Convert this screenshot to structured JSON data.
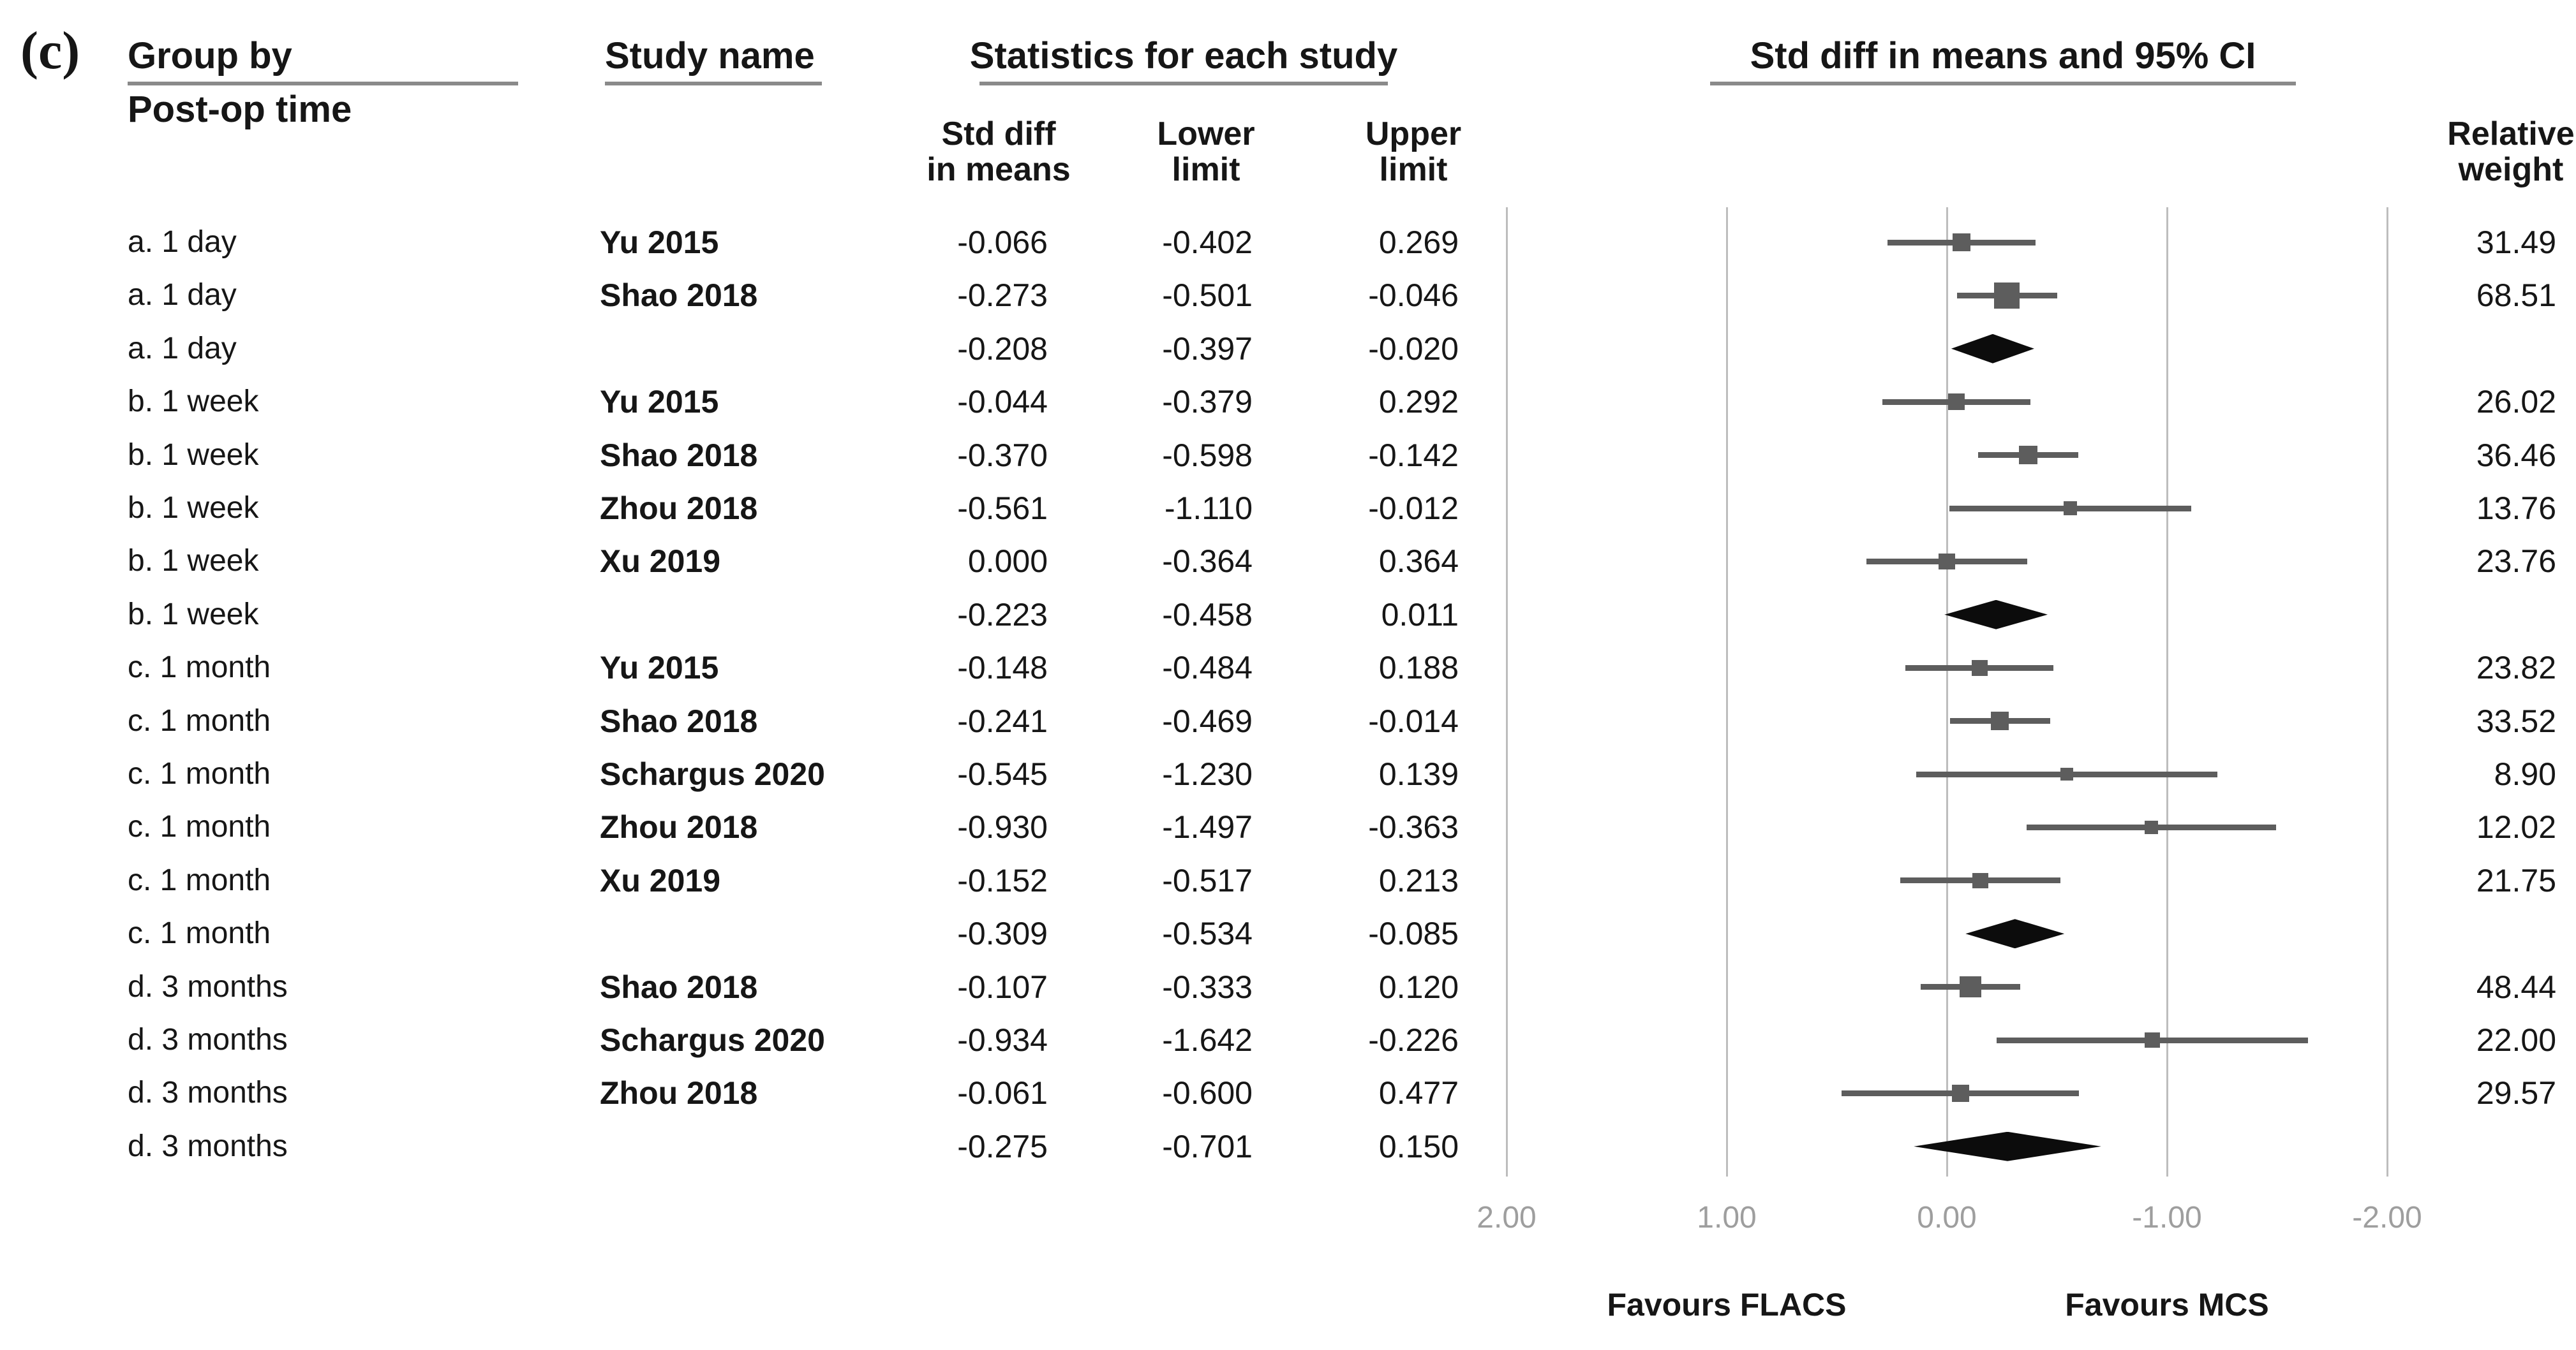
{
  "panel_label": "(c)",
  "headers": {
    "group_by": "Group by",
    "post_op_time": "Post-op time",
    "study_name": "Study name",
    "statistics": "Statistics for each study",
    "std_diff_line1": "Std diff",
    "std_diff_line2": "in means",
    "lower_line1": "Lower",
    "lower_line2": "limit",
    "upper_line1": "Upper",
    "upper_line2": "limit",
    "ci_title": "Std diff in means and 95% CI",
    "weight_line1": "Relative",
    "weight_line2": "weight"
  },
  "chart_data": {
    "type": "scatter",
    "subtype": "forest-plot",
    "title": "Std diff in means and 95% CI",
    "x_axis": {
      "tick_labels": [
        "2.00",
        "1.00",
        "0.00",
        "-1.00",
        "-2.00"
      ],
      "tick_values": [
        2,
        1,
        0,
        -1,
        -2
      ],
      "reversed": true,
      "range": [
        2,
        -2
      ],
      "grid": true
    },
    "favours": {
      "left": "Favours FLACS",
      "right": "Favours MCS"
    },
    "rows": [
      {
        "kind": "study",
        "group": "a. 1 day",
        "study": "Yu 2015",
        "std_diff": "-0.066",
        "lower": "-0.402",
        "upper": "0.269",
        "weight": "31.49"
      },
      {
        "kind": "study",
        "group": "a. 1 day",
        "study": "Shao 2018",
        "std_diff": "-0.273",
        "lower": "-0.501",
        "upper": "-0.046",
        "weight": "68.51"
      },
      {
        "kind": "summary",
        "group": "a. 1 day",
        "study": "",
        "std_diff": "-0.208",
        "lower": "-0.397",
        "upper": "-0.020",
        "weight": ""
      },
      {
        "kind": "study",
        "group": "b. 1 week",
        "study": "Yu 2015",
        "std_diff": "-0.044",
        "lower": "-0.379",
        "upper": "0.292",
        "weight": "26.02"
      },
      {
        "kind": "study",
        "group": "b. 1 week",
        "study": "Shao 2018",
        "std_diff": "-0.370",
        "lower": "-0.598",
        "upper": "-0.142",
        "weight": "36.46"
      },
      {
        "kind": "study",
        "group": "b. 1 week",
        "study": "Zhou 2018",
        "std_diff": "-0.561",
        "lower": "-1.110",
        "upper": "-0.012",
        "weight": "13.76"
      },
      {
        "kind": "study",
        "group": "b. 1 week",
        "study": "Xu 2019",
        "std_diff": "0.000",
        "lower": "-0.364",
        "upper": "0.364",
        "weight": "23.76"
      },
      {
        "kind": "summary",
        "group": "b. 1 week",
        "study": "",
        "std_diff": "-0.223",
        "lower": "-0.458",
        "upper": "0.011",
        "weight": ""
      },
      {
        "kind": "study",
        "group": "c. 1 month",
        "study": "Yu 2015",
        "std_diff": "-0.148",
        "lower": "-0.484",
        "upper": "0.188",
        "weight": "23.82"
      },
      {
        "kind": "study",
        "group": "c. 1 month",
        "study": "Shao 2018",
        "std_diff": "-0.241",
        "lower": "-0.469",
        "upper": "-0.014",
        "weight": "33.52"
      },
      {
        "kind": "study",
        "group": "c. 1 month",
        "study": "Schargus 2020",
        "std_diff": "-0.545",
        "lower": "-1.230",
        "upper": "0.139",
        "weight": "8.90"
      },
      {
        "kind": "study",
        "group": "c. 1 month",
        "study": "Zhou 2018",
        "std_diff": "-0.930",
        "lower": "-1.497",
        "upper": "-0.363",
        "weight": "12.02"
      },
      {
        "kind": "study",
        "group": "c. 1 month",
        "study": "Xu 2019",
        "std_diff": "-0.152",
        "lower": "-0.517",
        "upper": "0.213",
        "weight": "21.75"
      },
      {
        "kind": "summary",
        "group": "c. 1 month",
        "study": "",
        "std_diff": "-0.309",
        "lower": "-0.534",
        "upper": "-0.085",
        "weight": ""
      },
      {
        "kind": "study",
        "group": "d. 3 months",
        "study": "Shao 2018",
        "std_diff": "-0.107",
        "lower": "-0.333",
        "upper": "0.120",
        "weight": "48.44"
      },
      {
        "kind": "study",
        "group": "d. 3 months",
        "study": "Schargus 2020",
        "std_diff": "-0.934",
        "lower": "-1.642",
        "upper": "-0.226",
        "weight": "22.00"
      },
      {
        "kind": "study",
        "group": "d. 3 months",
        "study": "Zhou 2018",
        "std_diff": "-0.061",
        "lower": "-0.600",
        "upper": "0.477",
        "weight": "29.57"
      },
      {
        "kind": "summary",
        "group": "d. 3 months",
        "study": "",
        "std_diff": "-0.275",
        "lower": "-0.701",
        "upper": "0.150",
        "weight": ""
      }
    ]
  },
  "colors": {
    "text": "#161616",
    "marker_square": "#5d5d5d",
    "ci_line": "#5d5d5d",
    "summary_diamond": "#0c0c0c",
    "gridline": "#bdbdbd",
    "tick_label": "#9e9e9e",
    "header_underline": "#8a8a8a"
  }
}
